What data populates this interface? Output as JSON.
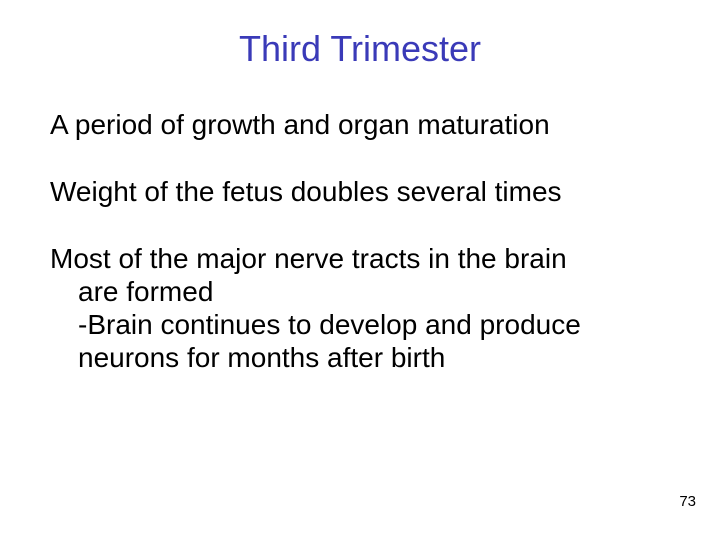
{
  "title": {
    "text": "Third Trimester",
    "color": "#3a3ab8"
  },
  "body": {
    "color": "#000000",
    "para1": "A period of growth and organ maturation",
    "para2": "Weight of the fetus doubles several times",
    "para3_line1": "Most of the major nerve tracts in the brain",
    "para3_line2": "are formed",
    "para3_line3": "-Brain continues to develop and produce",
    "para3_line4": "neurons for months after birth"
  },
  "page_number": "73",
  "background_color": "#ffffff"
}
